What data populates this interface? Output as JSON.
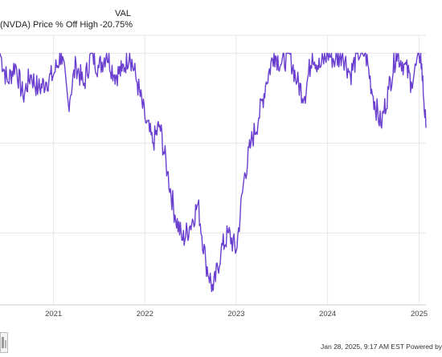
{
  "legend": {
    "series_label": "(NVDA) Price % Off High",
    "value_header": "VAL",
    "current_value": "-20.75%"
  },
  "footer": {
    "text": "Jan 28, 2025, 9:17 AM EST Powered by"
  },
  "chart_data": {
    "type": "line",
    "title": "",
    "xlabel": "",
    "ylabel": "",
    "x_tick_labels": [
      "2021",
      "2022",
      "2023",
      "2024",
      "2025"
    ],
    "xlim": [
      "2020-06-01",
      "2025-01-28"
    ],
    "ylim": [
      -70,
      5
    ],
    "grid": true,
    "series": [
      {
        "name": "(NVDA) Price % Off High",
        "color": "#6a3fcf",
        "points": [
          [
            "2020-06-01",
            0
          ],
          [
            "2020-07-01",
            -8
          ],
          [
            "2020-08-01",
            -3
          ],
          [
            "2020-09-01",
            -12
          ],
          [
            "2020-10-01",
            -6
          ],
          [
            "2020-11-01",
            -10
          ],
          [
            "2020-12-01",
            -8
          ],
          [
            "2021-01-01",
            -6
          ],
          [
            "2021-02-01",
            0
          ],
          [
            "2021-03-01",
            -14
          ],
          [
            "2021-04-01",
            -3
          ],
          [
            "2021-05-01",
            -9
          ],
          [
            "2021-06-01",
            0
          ],
          [
            "2021-07-01",
            -4
          ],
          [
            "2021-08-01",
            0
          ],
          [
            "2021-09-01",
            -6
          ],
          [
            "2021-10-01",
            -5
          ],
          [
            "2021-11-01",
            0
          ],
          [
            "2021-12-01",
            -8
          ],
          [
            "2022-01-01",
            -18
          ],
          [
            "2022-02-01",
            -25
          ],
          [
            "2022-03-01",
            -20
          ],
          [
            "2022-04-01",
            -33
          ],
          [
            "2022-05-01",
            -45
          ],
          [
            "2022-06-01",
            -52
          ],
          [
            "2022-07-01",
            -48
          ],
          [
            "2022-08-01",
            -42
          ],
          [
            "2022-09-01",
            -58
          ],
          [
            "2022-10-01",
            -66
          ],
          [
            "2022-11-01",
            -55
          ],
          [
            "2022-12-01",
            -50
          ],
          [
            "2023-01-01",
            -55
          ],
          [
            "2023-02-01",
            -35
          ],
          [
            "2023-03-01",
            -25
          ],
          [
            "2023-04-01",
            -18
          ],
          [
            "2023-05-01",
            -8
          ],
          [
            "2023-06-01",
            0
          ],
          [
            "2023-07-01",
            -3
          ],
          [
            "2023-08-01",
            0
          ],
          [
            "2023-09-01",
            -8
          ],
          [
            "2023-10-01",
            -12
          ],
          [
            "2023-11-01",
            0
          ],
          [
            "2023-12-01",
            -4
          ],
          [
            "2024-01-01",
            0
          ],
          [
            "2024-02-01",
            -2
          ],
          [
            "2024-03-01",
            0
          ],
          [
            "2024-04-01",
            -6
          ],
          [
            "2024-05-01",
            0
          ],
          [
            "2024-06-01",
            0
          ],
          [
            "2024-07-01",
            -12
          ],
          [
            "2024-08-01",
            -20
          ],
          [
            "2024-09-01",
            -10
          ],
          [
            "2024-10-01",
            0
          ],
          [
            "2024-11-01",
            -3
          ],
          [
            "2024-12-01",
            -8
          ],
          [
            "2025-01-07",
            0
          ],
          [
            "2025-01-28",
            -20.75
          ]
        ]
      }
    ]
  }
}
